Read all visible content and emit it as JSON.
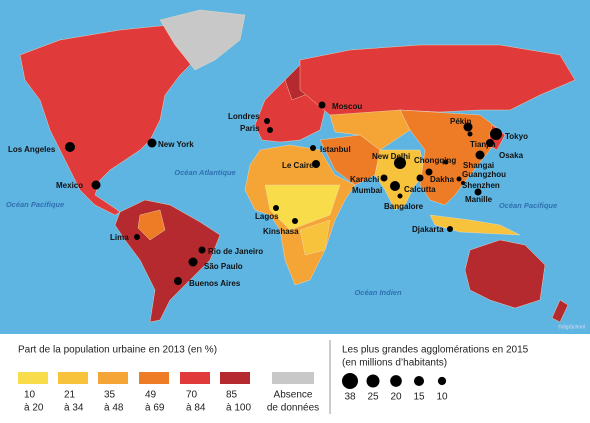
{
  "map": {
    "oceans": [
      "Océan Atlantique",
      "Océan Pacifique",
      "Océan Pacifique",
      "Océan Indien"
    ],
    "cities": [
      "Los Angeles",
      "New York",
      "Mexico",
      "Lima",
      "Rio de Janeiro",
      "São Paulo",
      "Buenos Aires",
      "Londres",
      "Paris",
      "Moscou",
      "Istanbul",
      "Le Caire",
      "Lagos",
      "Kinshasa",
      "New Delhi",
      "Karachi",
      "Mumbai",
      "Calcutta",
      "Dakha",
      "Chongqing",
      "Pékin",
      "Tianjin",
      "Tokyo",
      "Osaka",
      "Shangai",
      "Guangzhou",
      "Shenzhen",
      "Manille",
      "Bangalore",
      "Djakarta"
    ],
    "credit": "©digiSchool"
  },
  "legend_urban": {
    "title": "Part de la population urbaine en 2013 (en %)",
    "classes": [
      {
        "lines": [
          "10",
          "à 20"
        ],
        "color": "#f8dc4a"
      },
      {
        "lines": [
          "21",
          "à 34"
        ],
        "color": "#f7c23c"
      },
      {
        "lines": [
          "35",
          "à 48"
        ],
        "color": "#f4a536"
      },
      {
        "lines": [
          "49",
          "à 69"
        ],
        "color": "#ee7b26"
      },
      {
        "lines": [
          "70",
          "à 84"
        ],
        "color": "#e03b3a"
      },
      {
        "lines": [
          "85",
          "à 100"
        ],
        "color": "#b52a2f"
      },
      {
        "lines": [
          "Absence",
          "de données"
        ],
        "color": "#c8c8c8"
      }
    ]
  },
  "legend_cities": {
    "title": [
      "Les plus grandes agglomérations en 2015",
      "(en millions d’habitants)"
    ],
    "values": [
      38,
      25,
      20,
      15,
      10
    ]
  }
}
